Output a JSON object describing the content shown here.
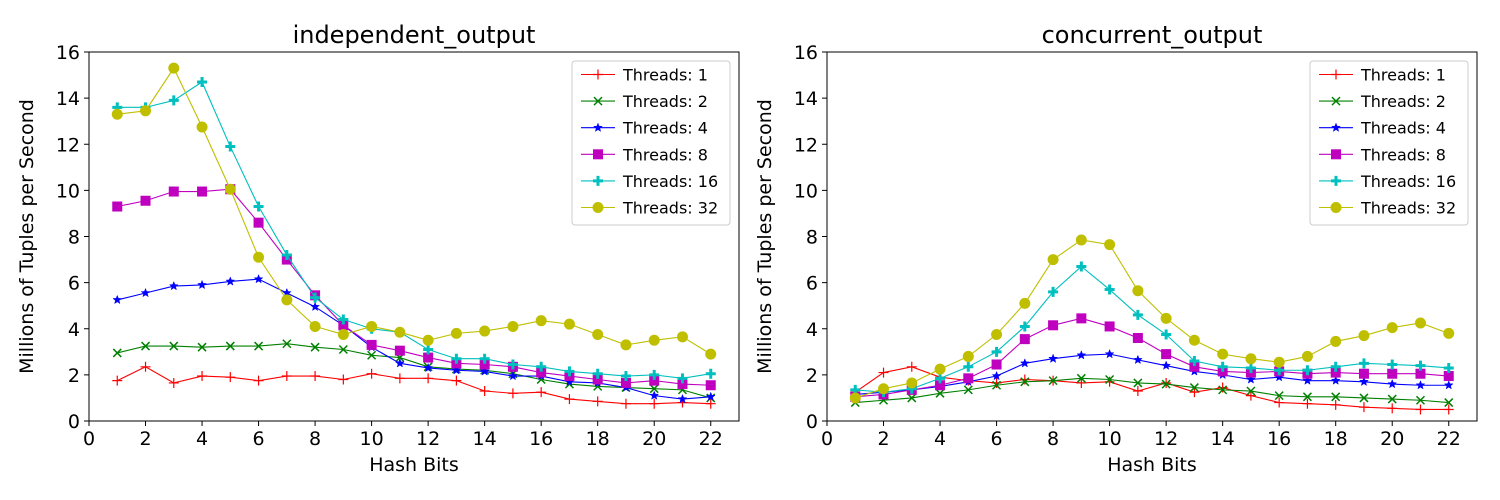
{
  "chart_data": [
    {
      "type": "line",
      "title": "independent_output",
      "xlabel": "Hash Bits",
      "ylabel": "Millions of Tuples per Second",
      "xlim": [
        0,
        23
      ],
      "ylim": [
        0,
        16
      ],
      "xticks": [
        0,
        2,
        4,
        6,
        8,
        10,
        12,
        14,
        16,
        18,
        20,
        22
      ],
      "yticks": [
        0,
        2,
        4,
        6,
        8,
        10,
        12,
        14,
        16
      ],
      "grid": false,
      "legend": "top-right",
      "x": [
        1,
        2,
        3,
        4,
        5,
        6,
        7,
        8,
        9,
        10,
        11,
        12,
        13,
        14,
        15,
        16,
        17,
        18,
        19,
        20,
        21,
        22
      ],
      "series": [
        {
          "name": "Threads: 1",
          "color": "#ff0000",
          "marker": "plus-thin",
          "values": [
            1.75,
            2.35,
            1.65,
            1.95,
            1.9,
            1.75,
            1.95,
            1.95,
            1.8,
            2.05,
            1.85,
            1.85,
            1.75,
            1.3,
            1.2,
            1.25,
            0.95,
            0.85,
            0.75,
            0.75,
            0.8,
            0.75
          ]
        },
        {
          "name": "Threads: 2",
          "color": "#008000",
          "marker": "x",
          "values": [
            2.95,
            3.25,
            3.25,
            3.2,
            3.25,
            3.25,
            3.35,
            3.2,
            3.1,
            2.85,
            2.75,
            2.35,
            2.25,
            2.2,
            2.05,
            1.8,
            1.6,
            1.5,
            1.45,
            1.4,
            1.35,
            1.0
          ]
        },
        {
          "name": "Threads: 4",
          "color": "#0000ff",
          "marker": "star",
          "values": [
            5.25,
            5.55,
            5.85,
            5.9,
            6.05,
            6.15,
            5.55,
            4.95,
            4.15,
            3.2,
            2.5,
            2.3,
            2.2,
            2.15,
            1.95,
            1.95,
            1.7,
            1.65,
            1.45,
            1.1,
            0.95,
            1.05
          ]
        },
        {
          "name": "Threads: 8",
          "color": "#bf00bf",
          "marker": "square",
          "values": [
            9.3,
            9.55,
            9.95,
            9.95,
            10.05,
            8.6,
            7.0,
            5.45,
            4.15,
            3.3,
            3.05,
            2.75,
            2.5,
            2.45,
            2.35,
            2.1,
            1.95,
            1.8,
            1.65,
            1.75,
            1.6,
            1.55
          ]
        },
        {
          "name": "Threads: 16",
          "color": "#00bfbf",
          "marker": "plus-bold",
          "values": [
            13.6,
            13.6,
            13.9,
            14.7,
            11.9,
            9.3,
            7.2,
            5.35,
            4.4,
            4.0,
            3.85,
            3.1,
            2.7,
            2.7,
            2.45,
            2.35,
            2.15,
            2.05,
            1.95,
            2.0,
            1.85,
            2.05
          ]
        },
        {
          "name": "Threads: 32",
          "color": "#bfbf00",
          "marker": "circle",
          "values": [
            13.3,
            13.45,
            15.3,
            12.75,
            10.05,
            7.1,
            5.25,
            4.1,
            3.75,
            4.1,
            3.85,
            3.5,
            3.8,
            3.9,
            4.1,
            4.35,
            4.2,
            3.75,
            3.3,
            3.5,
            3.65,
            2.9
          ]
        }
      ]
    },
    {
      "type": "line",
      "title": "concurrent_output",
      "xlabel": "Hash Bits",
      "ylabel": "Millions of Tuples per Second",
      "xlim": [
        0,
        23
      ],
      "ylim": [
        0,
        16
      ],
      "xticks": [
        0,
        2,
        4,
        6,
        8,
        10,
        12,
        14,
        16,
        18,
        20,
        22
      ],
      "yticks": [
        0,
        2,
        4,
        6,
        8,
        10,
        12,
        14,
        16
      ],
      "grid": false,
      "legend": "top-right",
      "x": [
        1,
        2,
        3,
        4,
        5,
        6,
        7,
        8,
        9,
        10,
        11,
        12,
        13,
        14,
        15,
        16,
        17,
        18,
        19,
        20,
        21,
        22
      ],
      "series": [
        {
          "name": "Threads: 1",
          "color": "#ff0000",
          "marker": "plus-thin",
          "values": [
            1.25,
            2.1,
            2.35,
            1.9,
            1.75,
            1.65,
            1.8,
            1.75,
            1.65,
            1.7,
            1.3,
            1.65,
            1.25,
            1.45,
            1.1,
            0.8,
            0.75,
            0.7,
            0.6,
            0.55,
            0.5,
            0.5
          ]
        },
        {
          "name": "Threads: 2",
          "color": "#008000",
          "marker": "x",
          "values": [
            0.8,
            0.9,
            1.0,
            1.2,
            1.35,
            1.55,
            1.7,
            1.75,
            1.85,
            1.8,
            1.65,
            1.6,
            1.45,
            1.35,
            1.3,
            1.1,
            1.05,
            1.05,
            1.0,
            0.95,
            0.9,
            0.8
          ]
        },
        {
          "name": "Threads: 4",
          "color": "#0000ff",
          "marker": "star",
          "values": [
            1.15,
            1.25,
            1.35,
            1.5,
            1.7,
            1.95,
            2.5,
            2.7,
            2.85,
            2.9,
            2.65,
            2.4,
            2.15,
            2.0,
            1.8,
            1.9,
            1.75,
            1.75,
            1.7,
            1.6,
            1.55,
            1.55
          ]
        },
        {
          "name": "Threads: 8",
          "color": "#bf00bf",
          "marker": "square",
          "values": [
            1.05,
            1.15,
            1.35,
            1.55,
            1.85,
            2.45,
            3.55,
            4.15,
            4.45,
            4.1,
            3.6,
            2.9,
            2.35,
            2.15,
            2.1,
            2.15,
            2.05,
            2.1,
            2.05,
            2.05,
            2.05,
            1.95
          ]
        },
        {
          "name": "Threads: 16",
          "color": "#00bfbf",
          "marker": "plus-bold",
          "values": [
            1.35,
            1.25,
            1.4,
            1.85,
            2.35,
            3.0,
            4.1,
            5.6,
            6.7,
            5.7,
            4.6,
            3.75,
            2.6,
            2.35,
            2.3,
            2.2,
            2.2,
            2.35,
            2.5,
            2.45,
            2.4,
            2.3
          ]
        },
        {
          "name": "Threads: 32",
          "color": "#bfbf00",
          "marker": "circle",
          "values": [
            1.0,
            1.4,
            1.65,
            2.25,
            2.8,
            3.75,
            5.1,
            7.0,
            7.85,
            7.65,
            5.65,
            4.45,
            3.5,
            2.9,
            2.7,
            2.55,
            2.8,
            3.45,
            3.7,
            4.05,
            4.25,
            3.8
          ]
        }
      ]
    }
  ]
}
